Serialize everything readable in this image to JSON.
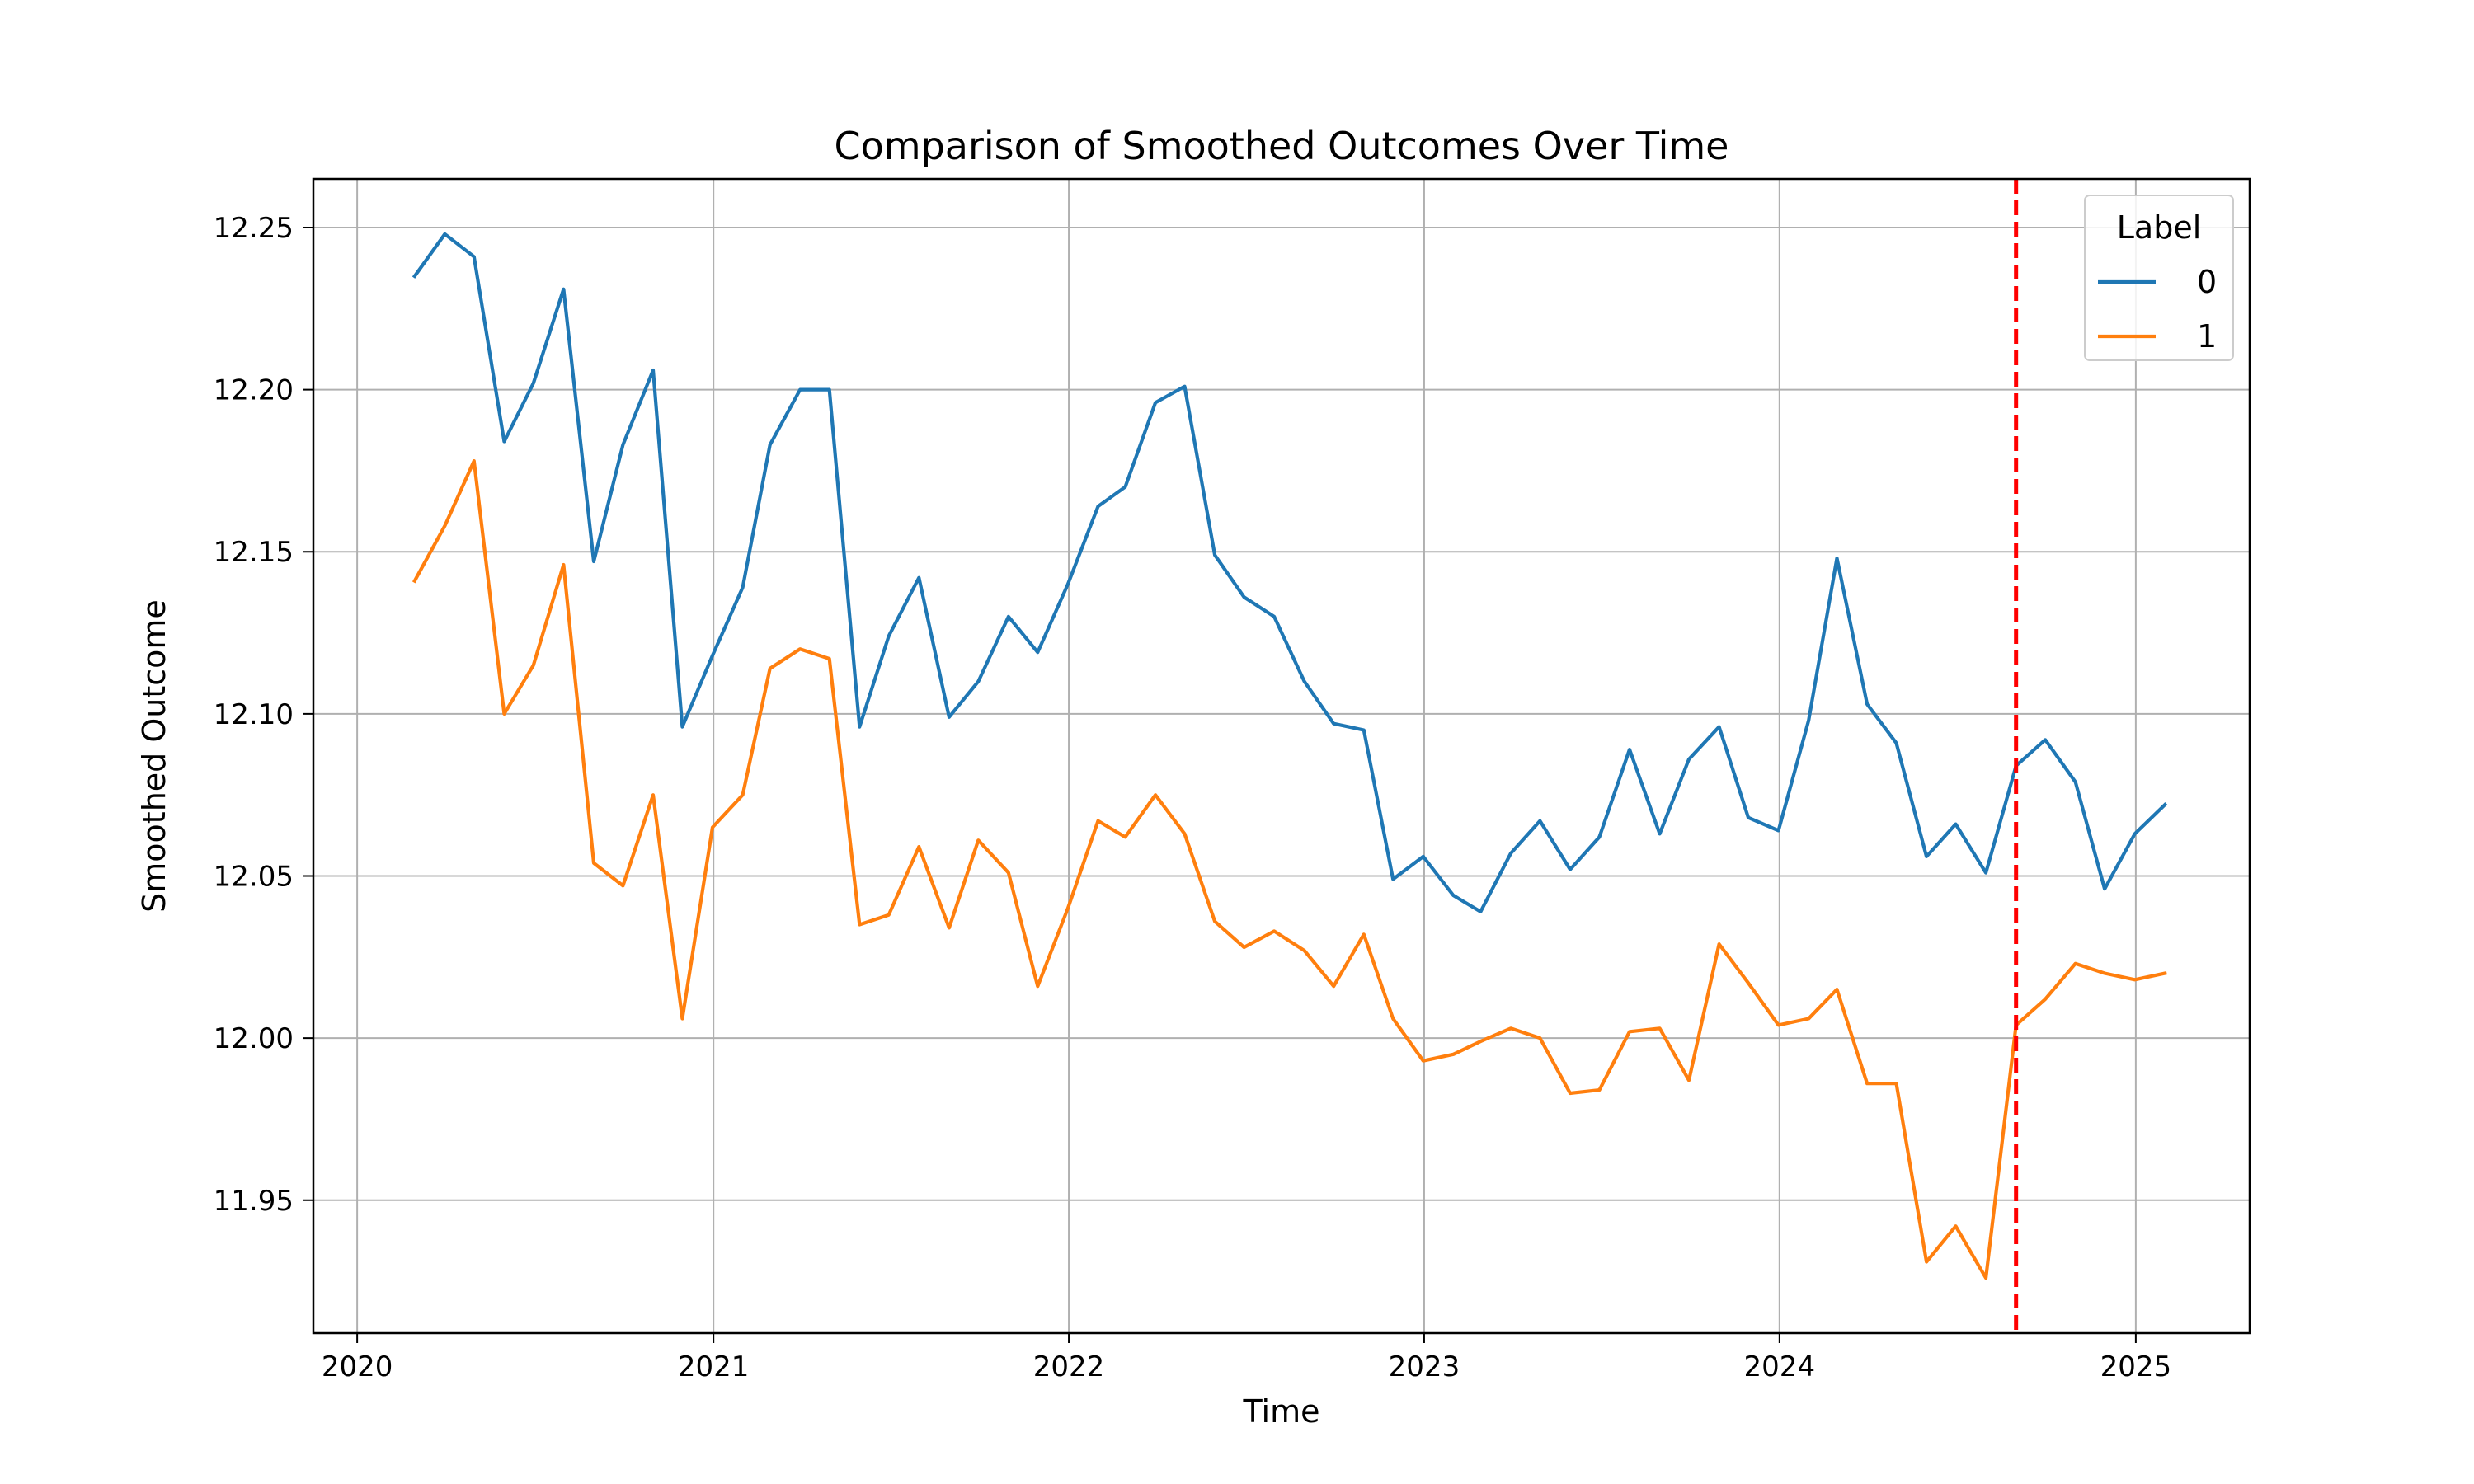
{
  "chart_data": {
    "type": "line",
    "title": "Comparison of Smoothed Outcomes Over Time",
    "xlabel": "Time",
    "ylabel": "Smoothed Outcome",
    "xlim": [
      "2019-11-17",
      "2025-04-28"
    ],
    "ylim": [
      11.909,
      12.265
    ],
    "x_ticks": [
      "2020",
      "2021",
      "2022",
      "2023",
      "2024",
      "2025"
    ],
    "y_ticks": [
      "11.95",
      "12.00",
      "12.05",
      "12.10",
      "12.15",
      "12.20",
      "12.25"
    ],
    "grid": true,
    "legend": {
      "title": "Label",
      "placement": "top-right"
    },
    "vline": {
      "x": "2024-08-31",
      "color": "#ff0000",
      "style": "dashed"
    },
    "x": [
      "2020-02-29",
      "2020-03-31",
      "2020-04-30",
      "2020-05-31",
      "2020-06-30",
      "2020-07-31",
      "2020-08-31",
      "2020-09-30",
      "2020-10-31",
      "2020-11-30",
      "2020-12-31",
      "2021-01-31",
      "2021-02-28",
      "2021-03-31",
      "2021-04-30",
      "2021-05-31",
      "2021-06-30",
      "2021-07-31",
      "2021-08-31",
      "2021-09-30",
      "2021-10-31",
      "2021-11-30",
      "2021-12-31",
      "2022-01-31",
      "2022-02-28",
      "2022-03-31",
      "2022-04-30",
      "2022-05-31",
      "2022-06-30",
      "2022-07-31",
      "2022-08-31",
      "2022-09-30",
      "2022-10-31",
      "2022-11-30",
      "2022-12-31",
      "2023-01-31",
      "2023-02-28",
      "2023-03-31",
      "2023-04-30",
      "2023-05-31",
      "2023-06-30",
      "2023-07-31",
      "2023-08-31",
      "2023-09-30",
      "2023-10-31",
      "2023-11-30",
      "2023-12-31",
      "2024-01-31",
      "2024-02-29",
      "2024-03-31",
      "2024-04-30",
      "2024-05-31",
      "2024-06-30",
      "2024-07-31",
      "2024-08-31",
      "2024-09-30",
      "2024-10-31",
      "2024-11-30",
      "2024-12-31",
      "2025-01-31"
    ],
    "series": [
      {
        "name": "0",
        "color": "#1f77b4",
        "values": [
          12.235,
          12.248,
          12.241,
          12.184,
          12.202,
          12.231,
          12.147,
          12.183,
          12.206,
          12.096,
          12.118,
          12.139,
          12.183,
          12.2,
          12.2,
          12.096,
          12.124,
          12.142,
          12.099,
          12.11,
          12.13,
          12.119,
          12.14,
          12.164,
          12.17,
          12.196,
          12.201,
          12.149,
          12.136,
          12.13,
          12.11,
          12.097,
          12.095,
          12.049,
          12.056,
          12.044,
          12.039,
          12.057,
          12.067,
          12.052,
          12.062,
          12.089,
          12.063,
          12.086,
          12.096,
          12.068,
          12.064,
          12.098,
          12.148,
          12.103,
          12.091,
          12.056,
          12.066,
          12.051,
          12.084,
          12.092,
          12.079,
          12.046,
          12.063,
          12.072
        ]
      },
      {
        "name": "1",
        "color": "#ff7f0e",
        "values": [
          12.141,
          12.158,
          12.178,
          12.1,
          12.115,
          12.146,
          12.054,
          12.047,
          12.075,
          12.006,
          12.065,
          12.075,
          12.114,
          12.12,
          12.117,
          12.035,
          12.038,
          12.059,
          12.034,
          12.061,
          12.051,
          12.016,
          12.04,
          12.067,
          12.062,
          12.075,
          12.063,
          12.036,
          12.028,
          12.033,
          12.027,
          12.016,
          12.032,
          12.006,
          11.993,
          11.995,
          11.999,
          12.003,
          12.0,
          11.983,
          11.984,
          12.002,
          12.003,
          11.987,
          12.029,
          12.017,
          12.004,
          12.006,
          12.015,
          11.986,
          11.986,
          11.931,
          11.942,
          11.926,
          12.004,
          12.012,
          12.023,
          12.02,
          12.018,
          12.02
        ]
      }
    ]
  }
}
